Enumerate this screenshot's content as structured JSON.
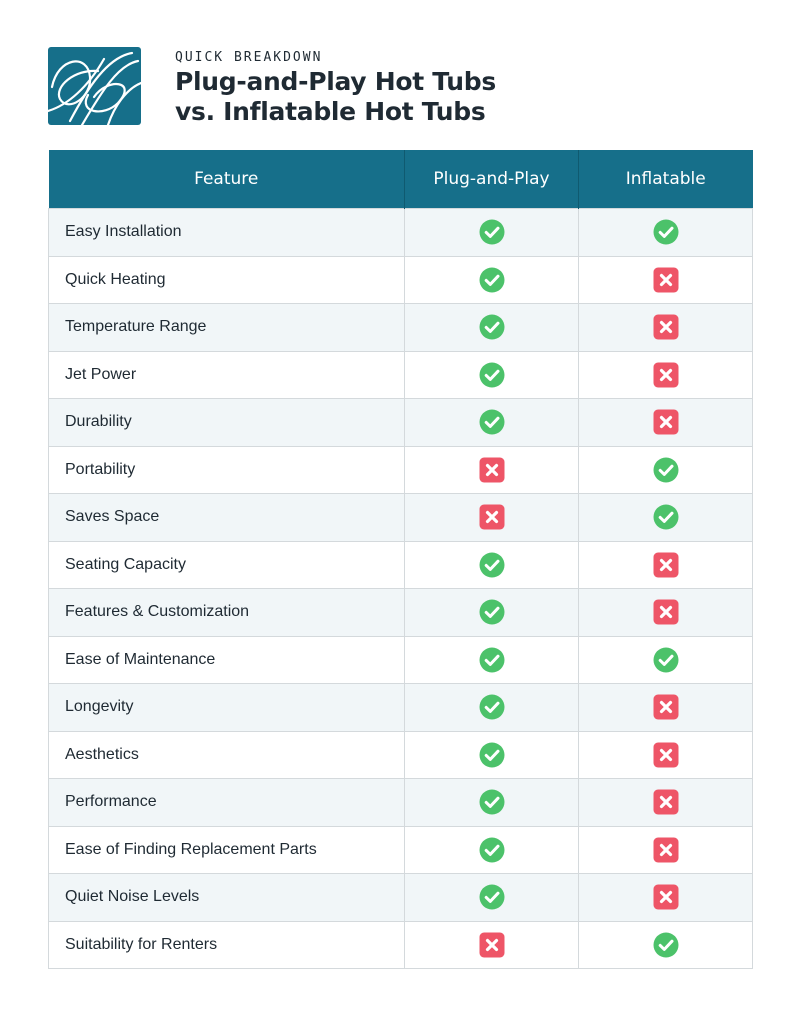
{
  "header": {
    "eyebrow": "QUICK BREAKDOWN",
    "title_line1": "Plug-and-Play Hot Tubs",
    "title_line2": "vs. Inflatable Hot Tubs"
  },
  "colors": {
    "brand_teal": "#166f8a",
    "check_green": "#4cc26a",
    "cross_red": "#ee5567"
  },
  "table": {
    "columns": [
      "Feature",
      "Plug-and-Play",
      "Inflatable"
    ],
    "rows": [
      {
        "feature": "Easy Installation",
        "plug_and_play": "check",
        "inflatable": "check"
      },
      {
        "feature": "Quick Heating",
        "plug_and_play": "check",
        "inflatable": "cross"
      },
      {
        "feature": "Temperature Range",
        "plug_and_play": "check",
        "inflatable": "cross"
      },
      {
        "feature": "Jet Power",
        "plug_and_play": "check",
        "inflatable": "cross"
      },
      {
        "feature": "Durability",
        "plug_and_play": "check",
        "inflatable": "cross"
      },
      {
        "feature": "Portability",
        "plug_and_play": "cross",
        "inflatable": "check"
      },
      {
        "feature": "Saves Space",
        "plug_and_play": "cross",
        "inflatable": "check"
      },
      {
        "feature": "Seating Capacity",
        "plug_and_play": "check",
        "inflatable": "cross"
      },
      {
        "feature": "Features & Customization",
        "plug_and_play": "check",
        "inflatable": "cross"
      },
      {
        "feature": "Ease of Maintenance",
        "plug_and_play": "check",
        "inflatable": "check"
      },
      {
        "feature": "Longevity",
        "plug_and_play": "check",
        "inflatable": "cross"
      },
      {
        "feature": "Aesthetics",
        "plug_and_play": "check",
        "inflatable": "cross"
      },
      {
        "feature": "Performance",
        "plug_and_play": "check",
        "inflatable": "cross"
      },
      {
        "feature": "Ease of Finding Replacement Parts",
        "plug_and_play": "check",
        "inflatable": "cross"
      },
      {
        "feature": "Quiet Noise Levels",
        "plug_and_play": "check",
        "inflatable": "cross"
      },
      {
        "feature": "Suitability for Renters",
        "plug_and_play": "cross",
        "inflatable": "check"
      }
    ]
  }
}
